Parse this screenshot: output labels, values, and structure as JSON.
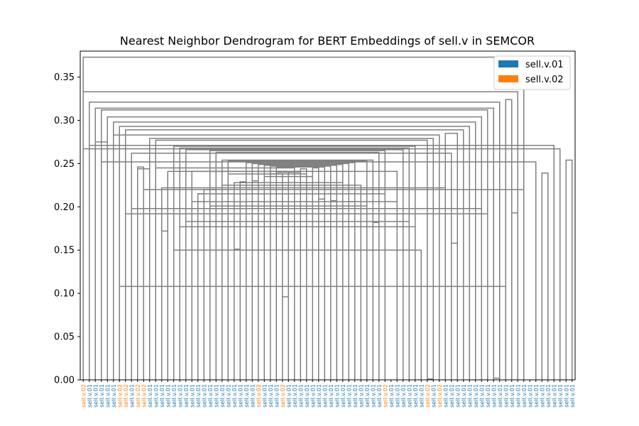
{
  "chart_data": {
    "type": "dendrogram",
    "title": "Nearest Neighbor Dendrogram for BERT Embeddings of sell.v in SEMCOR",
    "xlabel": "",
    "ylabel": "",
    "ylim": [
      0,
      0.38
    ],
    "yticks": [
      "0.00",
      "0.05",
      "0.10",
      "0.15",
      "0.20",
      "0.25",
      "0.30",
      "0.35"
    ],
    "grid": false,
    "legend_position": "top-right",
    "legend": [
      {
        "label": "sell.v.01",
        "color": "#1f77b4"
      },
      {
        "label": "sell.v.02",
        "color": "#ff7f0e"
      }
    ],
    "link_color": "#808080",
    "leaf_labels": [
      "sell.v.02",
      "sell.v.01",
      "sell.v.01",
      "sell.v.01",
      "sell.v.01",
      "sell.v.01",
      "sell.v.02",
      "sell.v.02",
      "sell.v.01",
      "sell.v.02",
      "sell.v.02",
      "sell.v.01",
      "sell.v.01",
      "sell.v.01",
      "sell.v.01",
      "sell.v.01",
      "sell.v.01",
      "sell.v.01",
      "sell.v.01",
      "sell.v.01",
      "sell.v.01",
      "sell.v.01",
      "sell.v.01",
      "sell.v.01",
      "sell.v.01",
      "sell.v.01",
      "sell.v.01",
      "sell.v.01",
      "sell.v.01",
      "sell.v.02",
      "sell.v.01",
      "sell.v.01",
      "sell.v.01",
      "sell.v.02",
      "sell.v.01",
      "sell.v.01",
      "sell.v.01",
      "sell.v.01",
      "sell.v.01",
      "sell.v.01",
      "sell.v.01",
      "sell.v.01",
      "sell.v.01",
      "sell.v.01",
      "sell.v.01",
      "sell.v.01",
      "sell.v.01",
      "sell.v.01",
      "sell.v.01",
      "sell.v.01",
      "sell.v.02",
      "sell.v.01",
      "sell.v.01",
      "sell.v.01",
      "sell.v.01",
      "sell.v.01",
      "sell.v.01",
      "sell.v.02",
      "sell.v.01",
      "sell.v.02",
      "sell.v.01",
      "sell.v.01",
      "sell.v.01",
      "sell.v.01",
      "sell.v.01",
      "sell.v.01",
      "sell.v.01",
      "sell.v.01",
      "sell.v.01",
      "sell.v.01",
      "sell.v.01",
      "sell.v.01",
      "sell.v.01",
      "sell.v.01",
      "sell.v.01",
      "sell.v.01",
      "sell.v.01",
      "sell.v.01",
      "sell.v.01",
      "sell.v.01",
      "sell.v.01",
      "sell.v.01"
    ],
    "merges": [
      {
        "left": 80,
        "right": 81,
        "height": 0.254
      },
      {
        "left": 79,
        "right": 0,
        "height": 0.267
      },
      {
        "left": 78,
        "right": 1,
        "height": 0.271
      },
      {
        "left": 76,
        "right": 77,
        "height": 0.239
      },
      {
        "left": 75,
        "right": 3,
        "height": 0.252
      },
      {
        "left": 2,
        "right": 4,
        "height": 0.275
      },
      {
        "left": 68,
        "right": 69,
        "height": 0.002
      },
      {
        "left": 6,
        "right": 70,
        "height": 0.108
      },
      {
        "left": 67,
        "right": 7,
        "height": 0.192
      },
      {
        "left": 66,
        "right": 8,
        "height": 0.198
      },
      {
        "left": 71,
        "right": 72,
        "height": 0.193
      },
      {
        "left": 73,
        "right": 10,
        "height": 0.22
      },
      {
        "left": 9,
        "right": 11,
        "height": 0.244
      },
      {
        "left": 61,
        "right": 62,
        "height": 0.158
      },
      {
        "left": 60,
        "right": 13,
        "height": 0.222
      },
      {
        "left": 57,
        "right": 58,
        "height": 0.001
      },
      {
        "left": 15,
        "right": 56,
        "height": 0.15
      },
      {
        "left": 16,
        "right": 55,
        "height": 0.177
      },
      {
        "left": 17,
        "right": 54,
        "height": 0.183
      },
      {
        "left": 52,
        "right": 18,
        "height": 0.206
      },
      {
        "left": 50,
        "right": 19,
        "height": 0.215
      },
      {
        "left": 48,
        "right": 49,
        "height": 0.182
      },
      {
        "left": 47,
        "right": 21,
        "height": 0.201
      },
      {
        "left": 20,
        "right": 22,
        "height": 0.22
      },
      {
        "left": 46,
        "right": 23,
        "height": 0.225
      },
      {
        "left": 44,
        "right": 45,
        "height": 0.206
      },
      {
        "left": 43,
        "right": 25,
        "height": 0.228
      },
      {
        "left": 41,
        "right": 42,
        "height": 0.207
      },
      {
        "left": 26,
        "right": 27,
        "height": 0.229
      },
      {
        "left": 39,
        "right": 40,
        "height": 0.209
      },
      {
        "left": 28,
        "right": 29,
        "height": 0.23
      },
      {
        "left": 38,
        "right": 30,
        "height": 0.235
      },
      {
        "left": 37,
        "right": 31,
        "height": 0.238
      },
      {
        "left": 36,
        "right": 32,
        "height": 0.24
      },
      {
        "left": 24,
        "right": 33,
        "height": 0.238
      },
      {
        "left": 34,
        "right": 14,
        "height": 0.241
      },
      {
        "left": 35,
        "right": 12,
        "height": 0.245
      },
      {
        "left": 33,
        "right": 34,
        "height": 0.096
      },
      {
        "left": 36,
        "right": 37,
        "height": 0.244
      },
      {
        "left": 38,
        "right": 39,
        "height": 0.245
      },
      {
        "left": 32,
        "right": 40,
        "height": 0.246
      },
      {
        "left": 31,
        "right": 41,
        "height": 0.247
      },
      {
        "left": 30,
        "right": 42,
        "height": 0.248
      },
      {
        "left": 29,
        "right": 43,
        "height": 0.249
      },
      {
        "left": 28,
        "right": 44,
        "height": 0.25
      },
      {
        "left": 27,
        "right": 45,
        "height": 0.251
      },
      {
        "left": 25,
        "right": 26,
        "height": 0.151
      },
      {
        "left": 24,
        "right": 47,
        "height": 0.253
      },
      {
        "left": 23,
        "right": 48,
        "height": 0.254
      },
      {
        "left": 22,
        "right": 49,
        "height": 0.263
      },
      {
        "left": 21,
        "right": 50,
        "height": 0.265
      },
      {
        "left": 19,
        "right": 20,
        "height": 0.215
      },
      {
        "left": 18,
        "right": 52,
        "height": 0.241
      },
      {
        "left": 17,
        "right": 53,
        "height": 0.266
      },
      {
        "left": 16,
        "right": 54,
        "height": 0.268
      },
      {
        "left": 15,
        "right": 55,
        "height": 0.27
      },
      {
        "left": 13,
        "right": 14,
        "height": 0.172
      },
      {
        "left": 12,
        "right": 57,
        "height": 0.277
      },
      {
        "left": 11,
        "right": 58,
        "height": 0.279
      },
      {
        "left": 59,
        "right": 5,
        "height": 0.283
      },
      {
        "left": 9,
        "right": 10,
        "height": 0.246
      },
      {
        "left": 8,
        "right": 61,
        "height": 0.262
      },
      {
        "left": 62,
        "right": 60,
        "height": 0.285
      },
      {
        "left": 7,
        "right": 63,
        "height": 0.289
      },
      {
        "left": 6,
        "right": 64,
        "height": 0.293
      },
      {
        "left": 5,
        "right": 65,
        "height": 0.298
      },
      {
        "left": 4,
        "right": 66,
        "height": 0.304
      },
      {
        "left": 3,
        "right": 67,
        "height": 0.312
      },
      {
        "left": 2,
        "right": 68,
        "height": 0.314
      },
      {
        "left": 1,
        "right": 69,
        "height": 0.321
      },
      {
        "left": 70,
        "right": 71,
        "height": 0.324
      },
      {
        "left": 72,
        "right": 0,
        "height": 0.333
      },
      {
        "left": 0,
        "right": 73,
        "height": 0.373
      }
    ]
  }
}
